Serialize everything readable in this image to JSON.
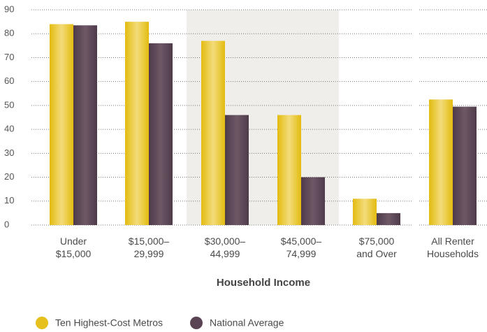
{
  "chart_data": {
    "type": "bar",
    "x_label": "Household Income",
    "categories": [
      "Under\n$15,000",
      "$15,000–\n29,999",
      "$30,000–\n44,999",
      "$45,000–\n74,999",
      "$75,000\nand Over",
      "All Renter\nHouseholds"
    ],
    "series": [
      {
        "name": "Ten Highest-Cost Metros",
        "color": "#e6c01c",
        "values": [
          84,
          85,
          77,
          46,
          11,
          52.5
        ]
      },
      {
        "name": "National Average",
        "color": "#5a4454",
        "values": [
          83.5,
          76,
          46,
          20,
          5,
          49.5
        ]
      }
    ],
    "ylim": [
      0,
      90
    ],
    "yticks": [
      0,
      10,
      20,
      30,
      40,
      50,
      60,
      70,
      80,
      90
    ],
    "grid": true
  }
}
